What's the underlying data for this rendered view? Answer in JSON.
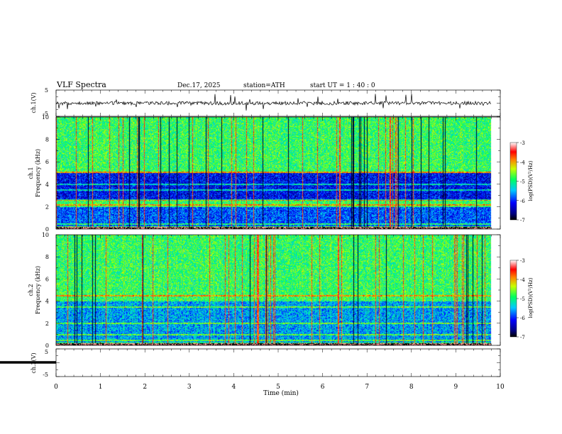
{
  "header": {
    "title": "VLF  Spectra",
    "date": "Dec.17, 2025",
    "station": "station=ATH",
    "start": "start  UT  =    1  : 40 : 0"
  },
  "chart_data": [
    {
      "type": "line",
      "name": "ch1-waveform",
      "ylabel": "ch.1(V)",
      "yticks": [
        "5",
        "-5"
      ],
      "ylim": [
        -5,
        5
      ],
      "xlim": [
        0,
        10
      ],
      "line_color": "#000000"
    },
    {
      "type": "heatmap",
      "name": "ch1-spectrogram",
      "ylabel_line1": "ch.1",
      "ylabel_line2": "Frequency  (kHz)",
      "yticks": [
        "0",
        "2",
        "4",
        "6",
        "8",
        "10"
      ],
      "ylim": [
        0,
        10
      ],
      "xlim": [
        0,
        10
      ],
      "data_end_min": 9.8,
      "colorbar": {
        "label": "log(PSD)(V²/Hz)",
        "ticks": [
          "-3",
          "-4",
          "-5",
          "-6",
          "-7"
        ],
        "range": [
          -7,
          -3
        ]
      },
      "bands_khz": [
        [
          0.3,
          2.0,
          -5.9
        ],
        [
          2.6,
          5.0,
          -6.2
        ]
      ],
      "lines_khz": [
        0.5,
        2.2,
        2.6,
        3.5,
        4.0,
        5.1
      ]
    },
    {
      "type": "heatmap",
      "name": "ch2-spectrogram",
      "ylabel_line1": "ch.2",
      "ylabel_line2": "Frequency  (kHz)",
      "yticks": [
        "0",
        "2",
        "4",
        "6",
        "8",
        "10"
      ],
      "ylim": [
        0,
        10
      ],
      "xlim": [
        0,
        10
      ],
      "data_end_min": 9.8,
      "colorbar": {
        "label": "log(PSD)(V²/Hz)",
        "ticks": [
          "-3",
          "-4",
          "-5",
          "-6",
          "-7"
        ],
        "range": [
          -7,
          -3
        ]
      },
      "bands_khz": [
        [
          0.3,
          4.0,
          -5.6
        ]
      ],
      "lines_khz": [
        0.5,
        1.0,
        2.0,
        3.5,
        4.5
      ]
    },
    {
      "type": "line",
      "name": "ch3-waveform",
      "ylabel": "ch.3(V)",
      "yticks": [
        "5",
        "-5"
      ],
      "ylim": [
        -5,
        5
      ],
      "xlim": [
        0,
        10
      ],
      "line_color": "#000000"
    }
  ],
  "xaxis": {
    "label": "Time  (min)",
    "ticks": [
      "0",
      "1",
      "2",
      "3",
      "4",
      "5",
      "6",
      "7",
      "8",
      "9",
      "10"
    ],
    "range": [
      0,
      10
    ]
  }
}
